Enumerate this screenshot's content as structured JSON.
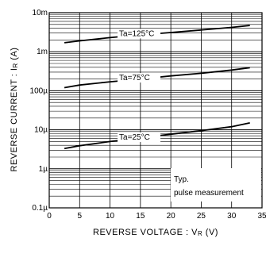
{
  "chart_data": {
    "type": "line",
    "xlabel": "REVERSE  VOLTAGE : V",
    "xlabel_sub": "R",
    "xlabel_unit": " (V)",
    "ylabel": "REVERSE  CURRENT : I",
    "ylabel_sub": "R",
    "ylabel_unit": " (A)",
    "xlim": [
      0,
      35
    ],
    "ylim": [
      1e-07,
      0.01
    ],
    "yscale": "log",
    "grid": true,
    "x_ticks": [
      0,
      5,
      10,
      15,
      20,
      25,
      30,
      35
    ],
    "x_tick_labels": [
      "0",
      "5",
      "10",
      "15",
      "20",
      "25",
      "30",
      "35"
    ],
    "y_ticks": [
      1e-07,
      1e-06,
      1e-05,
      0.0001,
      0.001,
      0.01
    ],
    "y_tick_labels": [
      "0.1µ",
      "1µ",
      "10µ",
      "100µ",
      "1m",
      "10m"
    ],
    "series": [
      {
        "name": "Ta=125°C",
        "x": [
          2.5,
          5,
          10,
          15,
          20,
          25,
          30,
          33
        ],
        "y": [
          0.0017,
          0.0019,
          0.0023,
          0.0027,
          0.0031,
          0.0036,
          0.0042,
          0.0047
        ]
      },
      {
        "name": "Ta=75°C",
        "x": [
          2.5,
          5,
          10,
          15,
          20,
          25,
          30,
          33
        ],
        "y": [
          0.00012,
          0.00014,
          0.00017,
          0.0002,
          0.00024,
          0.00028,
          0.00034,
          0.00039
        ]
      },
      {
        "name": "Ta=25°C",
        "x": [
          2.5,
          5,
          10,
          15,
          20,
          25,
          30,
          33
        ],
        "y": [
          3.3e-06,
          3.9e-06,
          5e-06,
          6.2e-06,
          7.7e-06,
          9.5e-06,
          1.2e-05,
          1.5e-05
        ]
      }
    ],
    "annotation": [
      "Typ.",
      "pulse measurement"
    ]
  }
}
